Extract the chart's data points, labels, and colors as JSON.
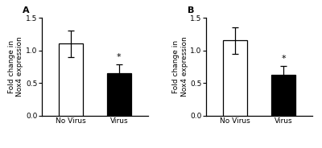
{
  "panels": [
    {
      "label": "A",
      "categories": [
        "No Virus",
        "Virus"
      ],
      "values": [
        1.1,
        0.65
      ],
      "errors": [
        0.2,
        0.13
      ],
      "bar_colors": [
        "white",
        "black"
      ],
      "bar_edgecolors": [
        "black",
        "black"
      ],
      "ylim": [
        0,
        1.5
      ],
      "yticks": [
        0.0,
        0.5,
        1.0,
        1.5
      ],
      "ylabel": "Fold change in\nNox4 expression",
      "significance": "*",
      "sig_bar_index": 1
    },
    {
      "label": "B",
      "categories": [
        "No Virus",
        "Virus"
      ],
      "values": [
        1.15,
        0.62
      ],
      "errors": [
        0.2,
        0.14
      ],
      "bar_colors": [
        "white",
        "black"
      ],
      "bar_edgecolors": [
        "black",
        "black"
      ],
      "ylim": [
        0,
        1.5
      ],
      "yticks": [
        0.0,
        0.5,
        1.0,
        1.5
      ],
      "ylabel": "Fold change in\nNox4 expression",
      "significance": "*",
      "sig_bar_index": 1
    }
  ],
  "figure_width": 4.0,
  "figure_height": 1.84,
  "dpi": 100,
  "background_color": "white",
  "bar_width": 0.5,
  "capsize": 3,
  "tick_fontsize": 6.5,
  "label_fontsize": 6.5,
  "panel_label_fontsize": 8,
  "sig_fontsize": 8
}
